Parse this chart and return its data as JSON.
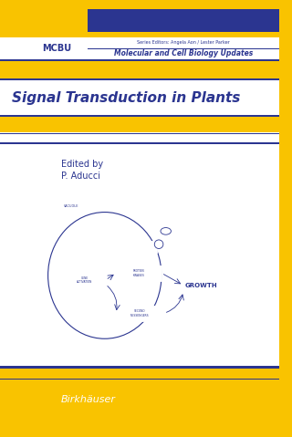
{
  "bg_color": "#F9C300",
  "blue_dark": "#2B3590",
  "white": "#FFFFFF",
  "title": "Signal Transduction in Plants",
  "edited_by": "Edited by",
  "author": "P. Aducci",
  "series_abbr": "MCBU",
  "series_editors_line": "Series Editors: Angela Aon / Lester Parker",
  "series_name": "Molecular and Cell Biology Updates",
  "publisher": "Birkhäuser",
  "gray_line": "#888888"
}
